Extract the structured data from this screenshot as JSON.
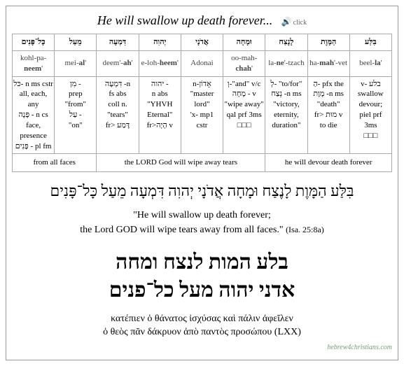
{
  "title": "He will swallow up death forever...",
  "audio_label": "click",
  "columns": [
    {
      "hebrew": "כָּל־פָּנִים",
      "translit_pre": "kohl-pa-",
      "translit_bold": "neem",
      "translit_post": "'",
      "gloss": "<span class='heb'>כּל</span>- n ms cstr<br>all, each, any<br><span class='heb'>פָּנֶה</span> - n cs<br>face, presence<br><span class='heb'>פָּנִים</span> - pl fm"
    },
    {
      "hebrew": "מֵעַל",
      "translit_pre": "mei-",
      "translit_bold": "al",
      "translit_post": "'",
      "gloss": "<span class='heb'>מִן</span> -<br>prep<br>\"from\"<br><span class='heb'>עַל</span> -<br>\"on\""
    },
    {
      "hebrew": "דִּמְעָה",
      "translit_pre": "deem'-",
      "translit_bold": "ah",
      "translit_post": "'",
      "gloss": "<span class='heb'>דִּמְעָה</span> -n<br>fs abs<br>coll n.<br>\"tears\"<br>fr> <span class='heb'>דֶּמַע</span>"
    },
    {
      "hebrew": "יְהוִה",
      "translit_pre": "e-loh-",
      "translit_bold": "heem",
      "translit_post": "'",
      "gloss": "<span class='heb'>יהוה</span> -<br>n abs<br>\"YHVH<br>Eternal\"<br>fr><span class='heb'>הָיָה</span> v"
    },
    {
      "hebrew": "אֲדֹנָי",
      "translit_pre": "",
      "translit_bold": "",
      "translit_post": "Adonai",
      "gloss": "n-<span class='heb'>אָדוֹן</span><br>\"master<br>lord\"<br>'x- mp1<br>cstr"
    },
    {
      "hebrew": "וּמָחָה",
      "translit_pre": "oo-mah-",
      "translit_bold": "chah",
      "translit_post": "'",
      "gloss": "<span class='heb'>וְ</span>-\"and\" v/c<br><span class='heb'>מָחָה</span> - v<br>\"wipe away\"<br>qal prf 3ms<br>□□□"
    },
    {
      "hebrew": "לָנֶצַח",
      "translit_pre": "la-",
      "translit_bold": "ne",
      "translit_post": "'-tzach",
      "gloss": "<span class='heb'>לְ</span>- \"to/for\"<br><span class='heb'>נֵצַח</span> -n ms<br>\"victory,<br>eternity,<br>duration\""
    },
    {
      "hebrew": "הַמָּוֶת",
      "translit_pre": "ha-",
      "translit_bold": "mah",
      "translit_post": "'-vet",
      "gloss": "<span class='heb'>הַ</span>- pfx the<br><span class='heb'>מָוֶת</span> -n ms<br>\"death\"<br>fr> <span class='heb'>מוּת</span> v<br>to die"
    },
    {
      "hebrew": "בִּלַּע",
      "translit_pre": "beel-",
      "translit_bold": "la",
      "translit_post": "'",
      "gloss": "v- <span class='heb'>בלע</span><br>swallow<br>devour;<br>piel prf<br>3ms<br>□□□"
    }
  ],
  "phrases": [
    {
      "span": 2,
      "text": "from all faces"
    },
    {
      "span": 4,
      "text": "the LORD God will wipe away tears"
    },
    {
      "span": 3,
      "text": "he will devour death forever"
    }
  ],
  "full_hebrew": "בִּלַּע הַמָּוֶת לָנֶצַח וּמָחָה אֲדֹנָי יְהוִה דִּמְעָה מֵעַל כָּל־פָּנִים",
  "english_line1": "\"He will swallow up death forever;",
  "english_line2": "the Lord GOD will wipe tears away from all faces.\"",
  "reference": "(Isa. 25:8a)",
  "block_hebrew_line1": "בלע המות לנצח ומחה",
  "block_hebrew_line2": "אדני יהוה מעל כל־פנים",
  "greek_line1": "κατέπιεν ὁ θάνατος ἰσχύσας καὶ πάλιν ἀφεῖλεν",
  "greek_line2": "ὁ θεὸς πᾶν δάκρυον ἀπὸ παντὸς προσώπου (LXX)",
  "credit": "hebrew4christians.com"
}
